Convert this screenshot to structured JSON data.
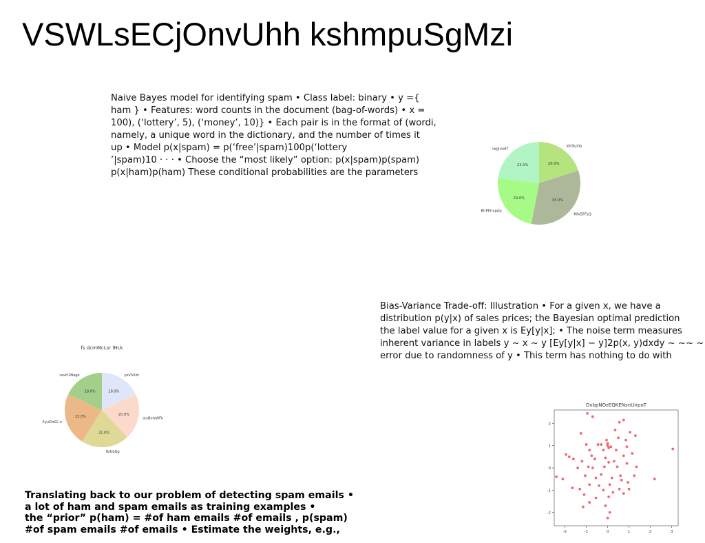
{
  "slide": {
    "title": "VSWLsECjOnvUhh kshmpuSgMzi"
  },
  "paragraph_naive_bayes": {
    "lines": [
      "Naive Bayes model for identifying spam • Class label: binary • y ={",
      "ham } • Features: word counts in the document (bag-of-words) • x =",
      "100), (‘lottery’, 5), (‘money’, 10)} • Each pair is in the format of (wordi,",
      "namely, a unique word in the dictionary, and the number of times it",
      "up • Model p(x|spam) = p(‘free’|spam)100p(‘lottery",
      "’|spam)10 · · · • Choose the “most likely” option: p(x|spam)p(spam)",
      "p(x|ham)p(ham) These conditional probabilities are the parameters"
    ]
  },
  "paragraph_bias_variance": {
    "lines": [
      "Bias-Variance Trade-off: Illustration • For a given x, we have a",
      "distribution p(y|x) of sales prices; the Bayesian optimal prediction",
      "the label value for a given x is Ey[y|x]; • The noise term measures",
      "inherent variance in labels y ∼ x ∼ y [Ey[y|x] − y]2p(x, y)dxdy ∼ ∼∼ ∼",
      "error due to randomness of y • This term has nothing to do with"
    ]
  },
  "paragraph_translating": {
    "lines": [
      "Translating back to our problem of detecting spam emails •",
      "a lot of ham and spam emails as training examples •",
      "the “prior” p(ham) = #of ham emails #of emails , p(spam)",
      "#of spam emails #of emails • Estimate the weights, e.g.,"
    ]
  },
  "chart_data": [
    {
      "type": "pie",
      "title": "",
      "slices": [
        {
          "label": "ldhSuXla",
          "value": 20.0,
          "pct": "20.0%",
          "color": "#b5e37d"
        },
        {
          "label": "MiVSFFzQ",
          "value": 33.0,
          "pct": "33.0%",
          "color": "#adb79a"
        },
        {
          "label": "BlrPKhxpAp",
          "value": 24.0,
          "pct": "24.0%",
          "color": "#a6fb86"
        },
        {
          "label": "iwglundT",
          "value": 23.0,
          "pct": "23.0%",
          "color": "#b2f5c4"
        }
      ]
    },
    {
      "type": "pie",
      "title": "fs dcmMcLsr lHLk",
      "slices": [
        {
          "label": "yoVSVzk",
          "value": 18.0,
          "pct": "18.0%",
          "color": "#dfe6f9"
        },
        {
          "label": "stvBmkWFk",
          "value": 20.0,
          "pct": "20.0%",
          "color": "#fcdacb"
        },
        {
          "label": "fkiUbQg",
          "value": 21.0,
          "pct": "21.0%",
          "color": "#dfd896"
        },
        {
          "label": "XyuDhKG n",
          "value": 23.0,
          "pct": "23.0%",
          "color": "#ecb888"
        },
        {
          "label": "LevtCMiago",
          "value": 18.0,
          "pct": "18.0%",
          "color": "#a2d08a"
        }
      ]
    },
    {
      "type": "scatter",
      "title": "DxbpNOzEQKENsnUirpoT",
      "xlim": [
        -2.5,
        3.3
      ],
      "ylim": [
        -2.6,
        2.6
      ],
      "xticks": [
        "-2",
        "-1",
        "0",
        "1",
        "2",
        "3"
      ],
      "yticks": [
        "2",
        "1",
        "0",
        "-1",
        "-2"
      ],
      "point_color": "#e8434f",
      "points": [
        [
          -0.95,
          2.45
        ],
        [
          -0.7,
          2.3
        ],
        [
          0.55,
          2.05
        ],
        [
          0.75,
          2.15
        ],
        [
          1.05,
          1.6
        ],
        [
          -1.25,
          1.55
        ],
        [
          -0.05,
          1.25
        ],
        [
          0.5,
          1.35
        ],
        [
          0.85,
          1.25
        ],
        [
          -0.45,
          1.05
        ],
        [
          -0.3,
          1.05
        ],
        [
          0.0,
          1.0
        ],
        [
          0.05,
          0.9
        ],
        [
          0.15,
          0.95
        ],
        [
          -0.85,
          0.8
        ],
        [
          -0.2,
          0.8
        ],
        [
          1.3,
          1.45
        ],
        [
          0.4,
          0.8
        ],
        [
          3.05,
          0.85
        ],
        [
          -1.6,
          0.4
        ],
        [
          -1.95,
          0.6
        ],
        [
          -1.8,
          0.5
        ],
        [
          -1.2,
          0.3
        ],
        [
          -0.6,
          0.4
        ],
        [
          -0.1,
          0.45
        ],
        [
          0.3,
          0.3
        ],
        [
          0.75,
          0.55
        ],
        [
          1.15,
          0.65
        ],
        [
          -1.4,
          0.0
        ],
        [
          -0.9,
          0.05
        ],
        [
          -0.7,
          0.0
        ],
        [
          -0.15,
          0.05
        ],
        [
          0.05,
          0.25
        ],
        [
          0.45,
          0.05
        ],
        [
          0.9,
          0.2
        ],
        [
          1.35,
          0.05
        ],
        [
          -2.4,
          -0.4
        ],
        [
          -2.1,
          -0.5
        ],
        [
          -1.05,
          -0.35
        ],
        [
          -0.55,
          -0.45
        ],
        [
          -0.3,
          -0.3
        ],
        [
          0.2,
          -0.45
        ],
        [
          0.65,
          -0.55
        ],
        [
          1.25,
          -0.35
        ],
        [
          2.2,
          -0.5
        ],
        [
          -1.65,
          -0.9
        ],
        [
          -1.3,
          -0.95
        ],
        [
          -0.85,
          -0.75
        ],
        [
          -0.4,
          -0.8
        ],
        [
          0.1,
          -0.75
        ],
        [
          0.55,
          -0.95
        ],
        [
          0.95,
          -0.65
        ],
        [
          -1.1,
          -1.2
        ],
        [
          -0.55,
          -1.35
        ],
        [
          0.05,
          -1.3
        ],
        [
          0.75,
          -1.15
        ],
        [
          -1.15,
          -1.75
        ],
        [
          -0.85,
          -1.55
        ],
        [
          -0.1,
          -1.7
        ],
        [
          0.1,
          -2.0
        ],
        [
          0.0,
          -2.25
        ],
        [
          0.25,
          -1.1
        ],
        [
          -0.2,
          -1.0
        ],
        [
          0.6,
          -0.35
        ],
        [
          -1.0,
          1.05
        ],
        [
          0.35,
          1.7
        ],
        [
          -0.75,
          0.55
        ],
        [
          0.9,
          0.95
        ],
        [
          0.0,
          1.1
        ],
        [
          1.0,
          -0.95
        ]
      ]
    }
  ]
}
